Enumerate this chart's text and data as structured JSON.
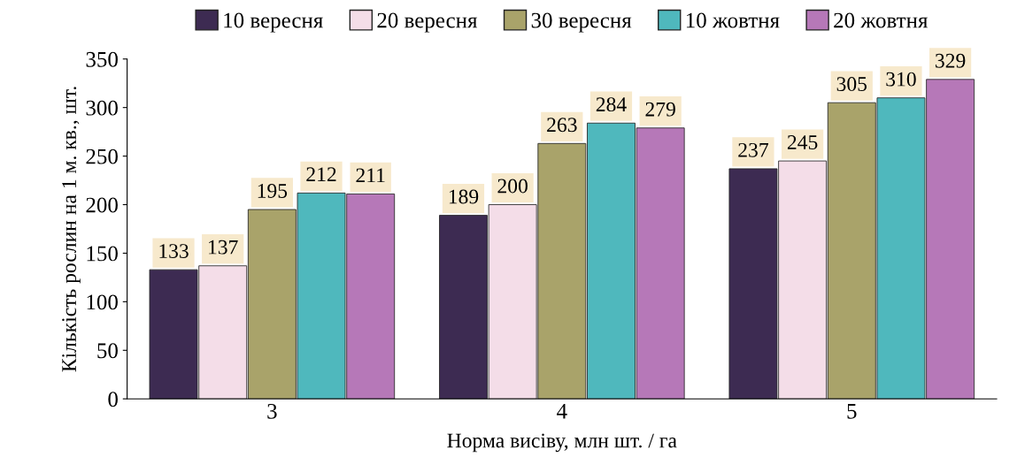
{
  "chart_data": {
    "type": "bar",
    "xlabel": "Норма висіву, млн шт. / га",
    "ylabel": "Кількість рослин на 1 м. кв., шт.",
    "categories": [
      "3",
      "4",
      "5"
    ],
    "series": [
      {
        "name": "10 вересня",
        "color": "#3d2b52",
        "values": [
          133,
          189,
          237
        ]
      },
      {
        "name": "20 вересня",
        "color": "#f4dde8",
        "values": [
          137,
          200,
          245
        ]
      },
      {
        "name": "30 вересня",
        "color": "#a9a36a",
        "values": [
          195,
          263,
          305
        ]
      },
      {
        "name": "10 жовтня",
        "color": "#4fb8bd",
        "values": [
          212,
          284,
          310
        ]
      },
      {
        "name": "20 жовтня",
        "color": "#b678b8",
        "values": [
          211,
          279,
          329
        ]
      }
    ],
    "ylim": [
      0,
      350
    ],
    "yticks": [
      0,
      50,
      100,
      150,
      200,
      250,
      300,
      350
    ],
    "grid": false,
    "legend": "top",
    "data_labels": true
  }
}
